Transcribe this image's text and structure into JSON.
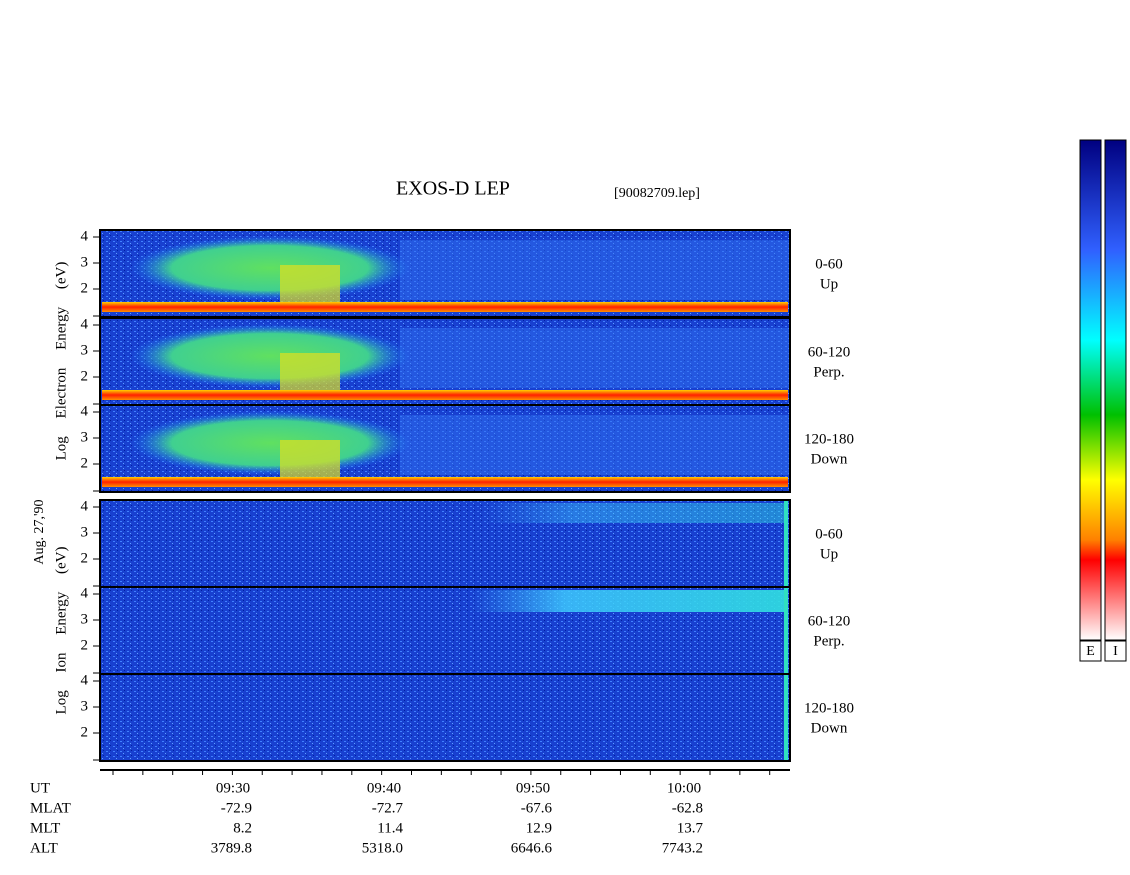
{
  "header": {
    "title": "EXOS-D LEP",
    "file": "[90082709.lep]"
  },
  "date": "Aug. 27,'90",
  "yticks": [
    "4",
    "3",
    "2"
  ],
  "electron": {
    "axis_label": "Log Electron Energy (eV)",
    "panels": [
      {
        "range": "0-60",
        "direction": "Up"
      },
      {
        "range": "60-120",
        "direction": "Perp."
      },
      {
        "range": "120-180",
        "direction": "Down"
      }
    ]
  },
  "ion": {
    "axis_label": "Log Ion Energy (eV)",
    "panels": [
      {
        "range": "0-60",
        "direction": "Up"
      },
      {
        "range": "60-120",
        "direction": "Perp."
      },
      {
        "range": "120-180",
        "direction": "Down"
      }
    ]
  },
  "orbit": {
    "rows": [
      {
        "label": "UT",
        "values": [
          "09:30",
          "09:40",
          "09:50",
          "10:00"
        ]
      },
      {
        "label": "MLAT",
        "values": [
          "-72.9",
          "-72.7",
          "-67.6",
          "-62.8"
        ]
      },
      {
        "label": "MLT",
        "values": [
          "8.2",
          "11.4",
          "12.9",
          "13.7"
        ]
      },
      {
        "label": "ALT",
        "values": [
          "3789.8",
          "5318.0",
          "6646.6",
          "7743.2"
        ]
      }
    ]
  },
  "colorbars": [
    "E",
    "I"
  ]
}
